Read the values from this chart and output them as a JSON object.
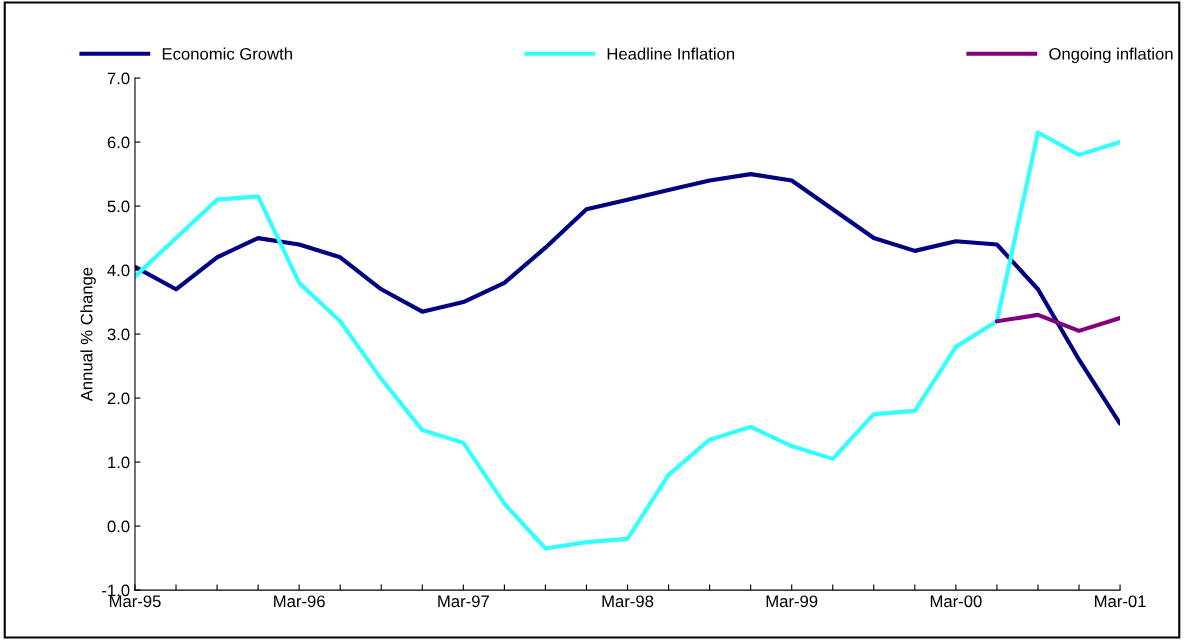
{
  "chart_data": {
    "type": "line",
    "ylabel": "Annual % Change",
    "categories": [
      "Mar-95",
      null,
      null,
      null,
      "Mar-96",
      null,
      null,
      null,
      "Mar-97",
      null,
      null,
      null,
      "Mar-98",
      null,
      null,
      null,
      "Mar-99",
      null,
      null,
      null,
      "Mar-00",
      null,
      null,
      null,
      "Mar-01"
    ],
    "series": [
      {
        "name": "Economic Growth",
        "color": "#000080",
        "values": [
          4.05,
          3.7,
          4.2,
          4.5,
          4.4,
          4.2,
          3.7,
          3.35,
          3.5,
          3.8,
          4.35,
          4.95,
          5.1,
          5.25,
          5.4,
          5.5,
          5.4,
          4.95,
          4.5,
          4.3,
          4.45,
          4.4,
          3.7,
          2.6,
          1.6
        ]
      },
      {
        "name": "Headline Inflation",
        "color": "#33ffff",
        "values": [
          3.9,
          4.5,
          5.1,
          5.15,
          3.8,
          3.2,
          2.3,
          1.5,
          1.3,
          0.35,
          -0.35,
          -0.25,
          -0.2,
          0.8,
          1.35,
          1.55,
          1.25,
          1.05,
          1.75,
          1.8,
          2.8,
          3.2,
          6.15,
          5.8,
          6.0
        ]
      },
      {
        "name": "Ongoing inflation",
        "color": "#800080",
        "values": [
          null,
          null,
          null,
          null,
          null,
          null,
          null,
          null,
          null,
          null,
          null,
          null,
          null,
          null,
          null,
          null,
          null,
          null,
          null,
          null,
          null,
          3.2,
          3.3,
          3.05,
          3.25
        ]
      }
    ],
    "ylim": [
      -1,
      7
    ],
    "yticks": [
      {
        "value": -1,
        "label": "-1.0"
      },
      {
        "value": 0,
        "label": "0.0"
      },
      {
        "value": 1,
        "label": "1.0"
      },
      {
        "value": 2,
        "label": "2.0"
      },
      {
        "value": 3,
        "label": "3.0"
      },
      {
        "value": 4,
        "label": "4.0"
      },
      {
        "value": 5,
        "label": "5.0"
      },
      {
        "value": 6,
        "label": "6.0"
      },
      {
        "value": 7,
        "label": "7.0"
      }
    ],
    "legend": "top",
    "grid": false,
    "marker": "none",
    "line_style": "solid"
  }
}
